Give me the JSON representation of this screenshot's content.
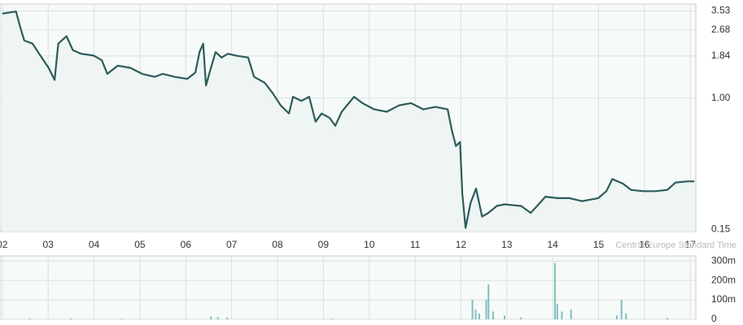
{
  "chart_data": [
    {
      "type": "line",
      "log": true,
      "grid": true,
      "color": "#2d5c5a",
      "fill": "#eef5f3",
      "annotation": "Central Europe Standard Time",
      "x": [
        2.0,
        2.3,
        2.39,
        2.48,
        2.66,
        2.83,
        3.01,
        3.14,
        3.22,
        3.33,
        3.4,
        3.54,
        3.72,
        3.99,
        4.17,
        4.29,
        4.52,
        4.79,
        5.05,
        5.32,
        5.5,
        5.76,
        6.03,
        6.21,
        6.3,
        6.38,
        6.44,
        6.53,
        6.65,
        6.78,
        6.92,
        7.09,
        7.36,
        7.49,
        7.72,
        7.89,
        8.07,
        8.25,
        8.34,
        8.52,
        8.69,
        8.83,
        8.96,
        9.14,
        9.26,
        9.4,
        9.67,
        9.85,
        10.11,
        10.38,
        10.65,
        10.91,
        11.18,
        11.44,
        11.71,
        11.8,
        11.89,
        11.98,
        12.03,
        12.1,
        12.21,
        12.33,
        12.46,
        12.6,
        12.78,
        12.95,
        13.31,
        13.52,
        13.66,
        13.84,
        14.11,
        14.37,
        14.64,
        14.99,
        15.17,
        15.3,
        15.53,
        15.71,
        15.97,
        16.24,
        16.5,
        16.68,
        16.95,
        17.09
      ],
      "values": [
        3.4,
        3.5,
        2.8,
        2.3,
        2.2,
        1.85,
        1.55,
        1.3,
        2.2,
        2.35,
        2.45,
        2.0,
        1.9,
        1.85,
        1.73,
        1.42,
        1.6,
        1.55,
        1.42,
        1.36,
        1.42,
        1.36,
        1.32,
        1.45,
        1.95,
        2.2,
        1.2,
        1.48,
        1.95,
        1.8,
        1.9,
        1.85,
        1.8,
        1.36,
        1.25,
        1.08,
        0.9,
        0.8,
        1.02,
        0.96,
        1.02,
        0.71,
        0.8,
        0.75,
        0.67,
        0.82,
        1.02,
        0.93,
        0.85,
        0.82,
        0.9,
        0.93,
        0.85,
        0.88,
        0.85,
        0.63,
        0.5,
        0.53,
        0.25,
        0.153,
        0.22,
        0.27,
        0.18,
        0.19,
        0.21,
        0.215,
        0.21,
        0.19,
        0.21,
        0.24,
        0.235,
        0.235,
        0.225,
        0.235,
        0.26,
        0.31,
        0.29,
        0.265,
        0.26,
        0.26,
        0.265,
        0.295,
        0.3,
        0.3
      ],
      "xlim": [
        1.95,
        17.12
      ],
      "xticks": [
        {
          "value": 2,
          "label": "02"
        },
        {
          "value": 3,
          "label": "03"
        },
        {
          "value": 4,
          "label": "04"
        },
        {
          "value": 5,
          "label": "05"
        },
        {
          "value": 6,
          "label": "06"
        },
        {
          "value": 7,
          "label": "07"
        },
        {
          "value": 8,
          "label": "08"
        },
        {
          "value": 9,
          "label": "09"
        },
        10,
        11,
        12,
        13,
        14,
        15,
        16,
        17
      ],
      "ylim": [
        0.145,
        3.9
      ],
      "yticks": [
        {
          "value": 3.53,
          "label": "3.53"
        },
        {
          "value": 2.68,
          "label": "2.68"
        },
        {
          "value": 1.84,
          "label": "1.84"
        },
        {
          "value": 1,
          "label": "1.00"
        },
        {
          "value": 0.15,
          "label": "0.15"
        }
      ]
    },
    {
      "type": "bar",
      "grid": true,
      "color": "#7fbfbf",
      "x": [
        2.6,
        3.5,
        4.6,
        6.55,
        6.7,
        6.9,
        9.2,
        12.25,
        12.32,
        12.4,
        12.55,
        12.6,
        12.7,
        12.95,
        13.3,
        14.05,
        14.1,
        14.2,
        14.4,
        15.4,
        15.5,
        15.6,
        16.5
      ],
      "values": [
        4,
        5,
        3,
        15,
        12,
        10,
        4,
        100,
        50,
        30,
        100,
        180,
        40,
        20,
        10,
        290,
        80,
        40,
        50,
        20,
        100,
        30,
        8
      ],
      "xlim": [
        1.95,
        17.12
      ],
      "ylim": [
        0,
        326
      ],
      "yticks": [
        0,
        {
          "value": 100,
          "label": "100m"
        },
        {
          "value": 200,
          "label": "200m"
        },
        {
          "value": 300,
          "label": "300m"
        }
      ]
    }
  ]
}
